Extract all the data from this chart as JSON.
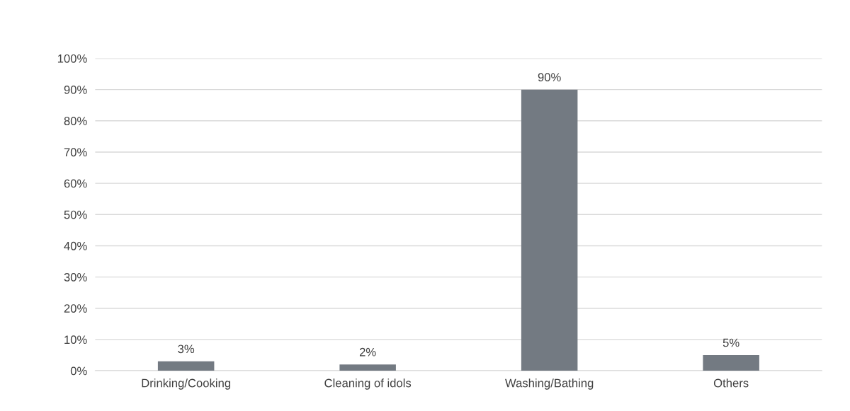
{
  "chart_data": {
    "type": "bar",
    "categories": [
      "Drinking/Cooking",
      "Cleaning of idols",
      "Washing/Bathing",
      "Others"
    ],
    "values": [
      3,
      2,
      90,
      5
    ],
    "value_labels": [
      "3%",
      "2%",
      "90%",
      "5%"
    ],
    "color": "#737a82",
    "ylim": [
      0,
      100
    ],
    "yticks": [
      {
        "value": 0,
        "label": "0%"
      },
      {
        "value": 10,
        "label": "10%"
      },
      {
        "value": 20,
        "label": "20%"
      },
      {
        "value": 30,
        "label": "30%"
      },
      {
        "value": 40,
        "label": "40%"
      },
      {
        "value": 50,
        "label": "50%"
      },
      {
        "value": 60,
        "label": "60%"
      },
      {
        "value": 70,
        "label": "70%"
      },
      {
        "value": 80,
        "label": "80%"
      },
      {
        "value": 90,
        "label": "90%"
      },
      {
        "value": 100,
        "label": "100%"
      }
    ],
    "grid": "y",
    "legend": false
  }
}
